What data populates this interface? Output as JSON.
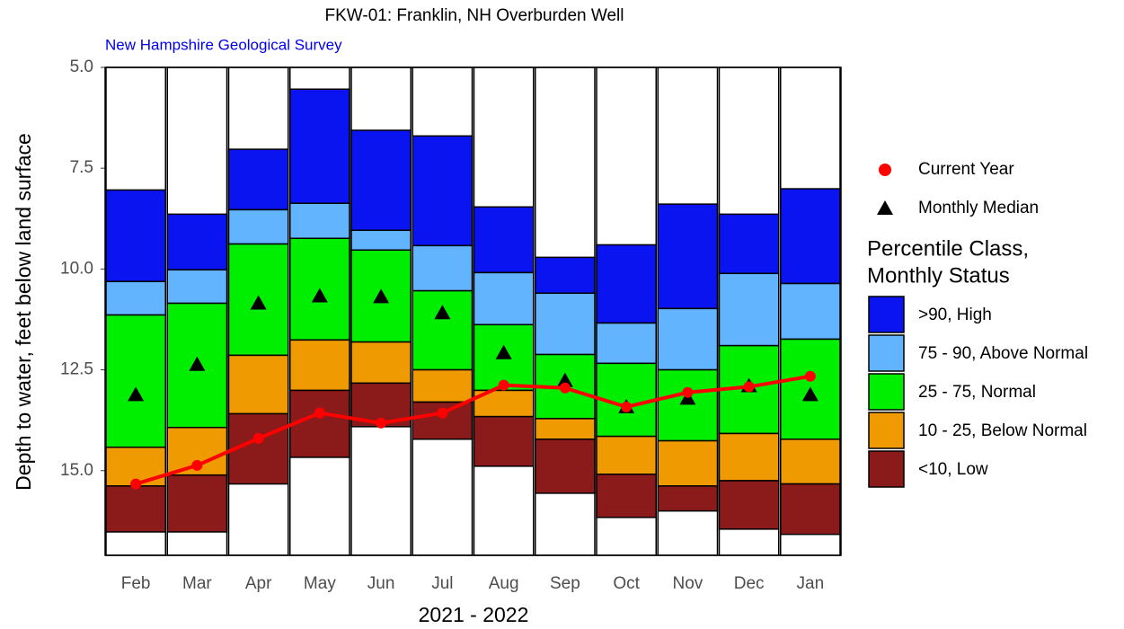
{
  "chart_data": {
    "type": "bar",
    "title": "FKW-01: Franklin, NH Overburden Well",
    "subtitle": "New Hampshire Geological Survey",
    "y_label": "Depth to water, feet below land surface",
    "x_label": "2021 - 2022",
    "categories": [
      "Feb",
      "Mar",
      "Apr",
      "May",
      "Jun",
      "Jul",
      "Aug",
      "Sep",
      "Oct",
      "Nov",
      "Dec",
      "Jan"
    ],
    "ylim": [
      5.0,
      17.1
    ],
    "y_inverted": true,
    "yticks": [
      {
        "value": 5,
        "label": "5.0"
      },
      7.5,
      {
        "value": 10,
        "label": "10.0"
      },
      12.5,
      {
        "value": 15,
        "label": "15.0"
      }
    ],
    "legend_title": [
      "Percentile Class,",
      "Monthly Status"
    ],
    "series": [
      {
        "name": ">90, High",
        "color": "#0a14f0",
        "values": [
          [
            8.04,
            10.31
          ],
          [
            8.64,
            10.02
          ],
          [
            7.03,
            8.53
          ],
          [
            5.54,
            8.37
          ],
          [
            6.56,
            9.04
          ],
          [
            6.7,
            9.42
          ],
          [
            8.46,
            10.09
          ],
          [
            9.71,
            10.6
          ],
          [
            9.4,
            11.34
          ],
          [
            8.39,
            10.98
          ],
          [
            8.64,
            10.11
          ],
          [
            8.01,
            10.36
          ]
        ]
      },
      {
        "name": "75 - 90, Above Normal",
        "color": "#63b4ff",
        "values": [
          [
            10.31,
            11.14
          ],
          [
            10.02,
            10.85
          ],
          [
            8.53,
            9.38
          ],
          [
            8.37,
            9.24
          ],
          [
            9.04,
            9.53
          ],
          [
            9.42,
            10.54
          ],
          [
            10.09,
            11.38
          ],
          [
            10.6,
            12.12
          ],
          [
            11.34,
            12.34
          ],
          [
            10.98,
            12.5
          ],
          [
            10.11,
            11.9
          ],
          [
            10.36,
            11.74
          ]
        ]
      },
      {
        "name": "25 - 75, Normal",
        "color": "#00ee00",
        "values": [
          [
            11.14,
            14.42
          ],
          [
            10.85,
            13.93
          ],
          [
            9.38,
            12.14
          ],
          [
            9.24,
            11.76
          ],
          [
            9.53,
            11.81
          ],
          [
            10.54,
            12.5
          ],
          [
            11.38,
            13.01
          ],
          [
            12.12,
            13.71
          ],
          [
            12.34,
            14.15
          ],
          [
            12.5,
            14.26
          ],
          [
            11.9,
            14.08
          ],
          [
            11.74,
            14.22
          ]
        ]
      },
      {
        "name": "10 - 25, Below Normal",
        "color": "#ee9a00",
        "values": [
          [
            14.42,
            15.38
          ],
          [
            13.93,
            15.11
          ],
          [
            12.14,
            13.59
          ],
          [
            11.76,
            13.01
          ],
          [
            11.81,
            12.83
          ],
          [
            12.5,
            13.3
          ],
          [
            13.01,
            13.66
          ],
          [
            13.71,
            14.22
          ],
          [
            14.15,
            15.09
          ],
          [
            14.26,
            15.38
          ],
          [
            14.08,
            15.25
          ],
          [
            14.22,
            15.33
          ]
        ]
      },
      {
        "name": "<10, Low",
        "color": "#8b1a1a",
        "values": [
          [
            15.38,
            16.52
          ],
          [
            15.11,
            16.52
          ],
          [
            13.59,
            15.33
          ],
          [
            13.01,
            14.67
          ],
          [
            12.83,
            13.91
          ],
          [
            13.3,
            14.22
          ],
          [
            13.66,
            14.89
          ],
          [
            14.22,
            15.56
          ],
          [
            15.09,
            16.16
          ],
          [
            15.38,
            16.0
          ],
          [
            15.25,
            16.45
          ],
          [
            15.33,
            16.58
          ]
        ]
      }
    ],
    "current_year": {
      "name": "Current Year",
      "color": "#ff0000",
      "values": [
        15.33,
        14.87,
        14.2,
        13.57,
        13.82,
        13.57,
        12.88,
        12.95,
        13.42,
        13.06,
        12.92,
        12.66
      ]
    },
    "median": {
      "name": "Monthly Median",
      "color": "#000000",
      "values": [
        13.12,
        12.37,
        10.85,
        10.67,
        10.69,
        11.09,
        12.08,
        12.77,
        13.42,
        13.21,
        12.9,
        13.12
      ]
    }
  }
}
